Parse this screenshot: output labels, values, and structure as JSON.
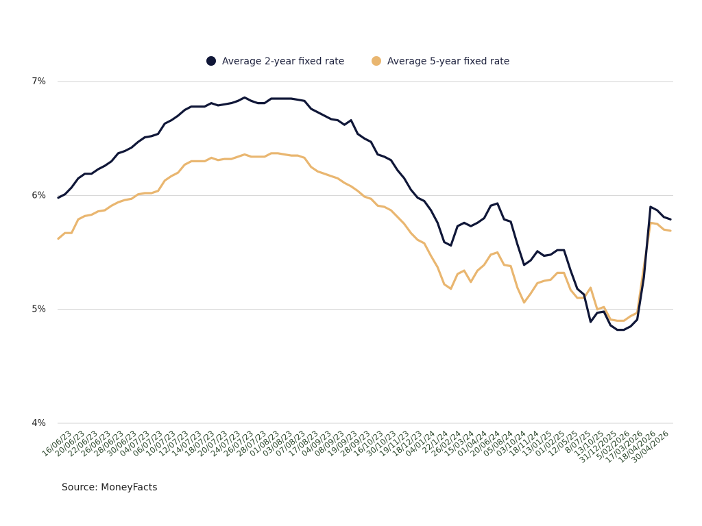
{
  "chart_data": {
    "type": "line",
    "title": "",
    "xlabel": "",
    "ylabel": "",
    "ylim": [
      4,
      7
    ],
    "yticks": [
      4,
      5,
      6,
      7
    ],
    "y_tick_suffix": "%",
    "grid": true,
    "legend_position": "top-center",
    "x_tick_labels": [
      "16/06/23",
      "20/06/23",
      "22/06/23",
      "26/06/23",
      "28/06/23",
      "30/06/23",
      "04/07/23",
      "06/07/23",
      "10/07/23",
      "12/07/23",
      "14/07/23",
      "18/07/23",
      "20/07/23",
      "24/07/23",
      "26/07/23",
      "28/07/23",
      "01/08/23",
      "03/08/23",
      "07/08/23",
      "17/08/23",
      "04/09/23",
      "08/09/23",
      "19/09/23",
      "28/09/23",
      "16/10/23",
      "30/10/23",
      "19/11/23",
      "18/12/23",
      "04/01/24",
      "22/1/24",
      "26/02/24",
      "15/03/24",
      "01/04/24",
      "20/06/24",
      "05/08/24",
      "03/10/24",
      "18/11/24",
      "13/01/25",
      "01/02/25",
      "12/05/25",
      "8/07/25",
      "13/10/25",
      "31/12/2025",
      "5/02/2026",
      "17/03/2026",
      "18/04/2026",
      "30/04/2026"
    ],
    "series": [
      {
        "name": "Average 2-year fixed rate",
        "color": "#101738",
        "values": [
          5.98,
          6.01,
          6.07,
          6.15,
          6.19,
          6.19,
          6.23,
          6.26,
          6.3,
          6.37,
          6.39,
          6.42,
          6.47,
          6.51,
          6.52,
          6.54,
          6.63,
          6.66,
          6.7,
          6.75,
          6.78,
          6.78,
          6.78,
          6.81,
          6.79,
          6.8,
          6.81,
          6.83,
          6.86,
          6.83,
          6.81,
          6.81,
          6.85,
          6.85,
          6.85,
          6.85,
          6.84,
          6.83,
          6.76,
          6.73,
          6.7,
          6.67,
          6.66,
          6.62,
          6.66,
          6.54,
          6.5,
          6.47,
          6.36,
          6.34,
          6.31,
          6.22,
          6.15,
          6.05,
          5.98,
          5.95,
          5.87,
          5.76,
          5.59,
          5.56,
          5.73,
          5.76,
          5.73,
          5.76,
          5.8,
          5.91,
          5.93,
          5.79,
          5.77,
          5.57,
          5.39,
          5.43,
          5.51,
          5.47,
          5.48,
          5.52,
          5.52,
          5.34,
          5.18,
          5.13,
          4.89,
          4.97,
          4.98,
          4.86,
          4.82,
          4.82,
          4.85,
          4.91,
          5.28,
          5.9,
          5.87,
          5.81,
          5.79
        ]
      },
      {
        "name": "Average 5-year fixed rate",
        "color": "#e9b670",
        "values": [
          5.62,
          5.67,
          5.67,
          5.79,
          5.82,
          5.83,
          5.86,
          5.87,
          5.91,
          5.94,
          5.96,
          5.97,
          6.01,
          6.02,
          6.02,
          6.04,
          6.13,
          6.17,
          6.2,
          6.27,
          6.3,
          6.3,
          6.3,
          6.33,
          6.31,
          6.32,
          6.32,
          6.34,
          6.36,
          6.34,
          6.34,
          6.34,
          6.37,
          6.37,
          6.36,
          6.35,
          6.35,
          6.33,
          6.25,
          6.21,
          6.19,
          6.17,
          6.15,
          6.11,
          6.08,
          6.04,
          5.99,
          5.97,
          5.91,
          5.9,
          5.87,
          5.81,
          5.75,
          5.67,
          5.61,
          5.58,
          5.47,
          5.37,
          5.22,
          5.18,
          5.31,
          5.34,
          5.24,
          5.34,
          5.39,
          5.48,
          5.5,
          5.39,
          5.38,
          5.19,
          5.06,
          5.14,
          5.23,
          5.25,
          5.26,
          5.32,
          5.32,
          5.17,
          5.1,
          5.1,
          5.19,
          5.0,
          5.02,
          4.91,
          4.9,
          4.9,
          4.94,
          4.97,
          5.37,
          5.76,
          5.75,
          5.7,
          5.69
        ]
      }
    ]
  },
  "source": "Source: MoneyFacts"
}
